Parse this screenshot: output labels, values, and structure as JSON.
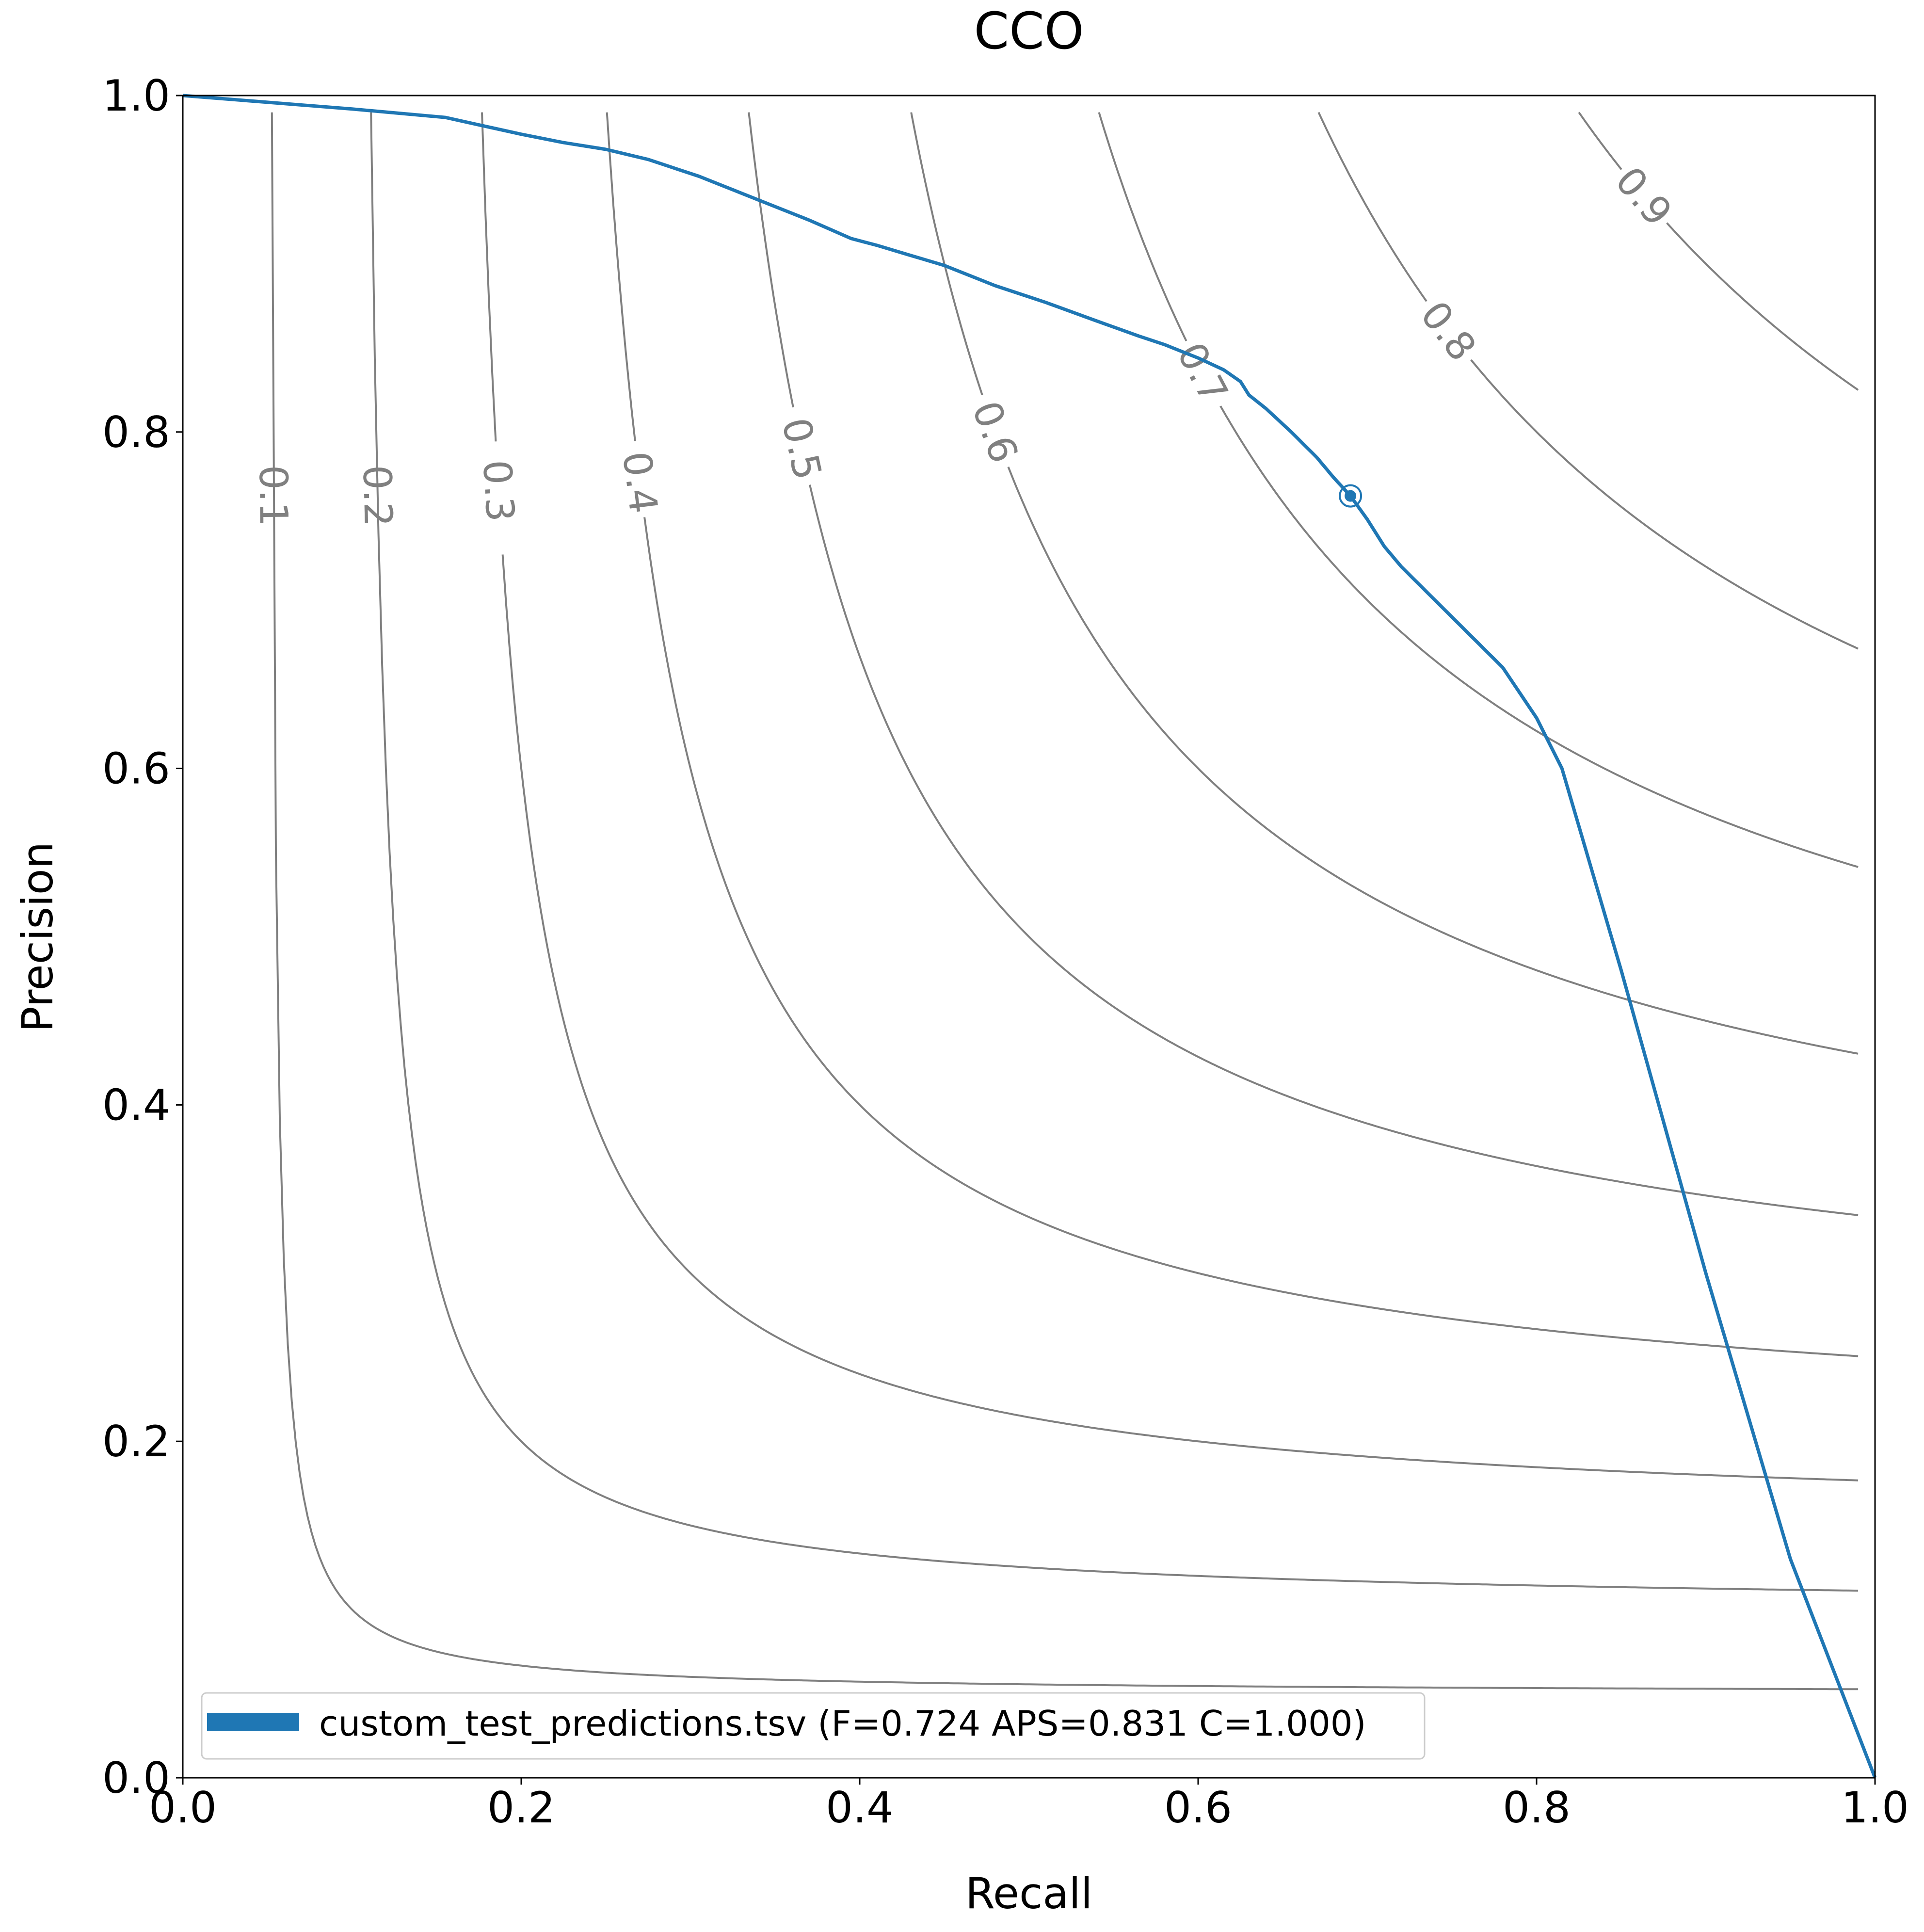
{
  "chart_data": {
    "type": "line",
    "title": "CCO",
    "xlabel": "Recall",
    "ylabel": "Precision",
    "xlim": [
      0.0,
      1.0
    ],
    "ylim": [
      0.0,
      1.0
    ],
    "xticks": [
      "0.0",
      "0.2",
      "0.4",
      "0.6",
      "0.8",
      "1.0"
    ],
    "yticks": [
      "0.0",
      "0.2",
      "0.4",
      "0.6",
      "0.8",
      "1.0"
    ],
    "grid": false,
    "legend_position": "lower-left",
    "iso_f_contours": {
      "color": "#808080",
      "levels": [
        0.1,
        0.2,
        0.3,
        0.4,
        0.5,
        0.6,
        0.7,
        0.8,
        0.9
      ],
      "labels": [
        "0.1",
        "0.2",
        "0.3",
        "0.4",
        "0.5",
        "0.6",
        "0.7",
        "0.8",
        "0.9"
      ]
    },
    "series": [
      {
        "name": "custom_test_predictions.tsv (F=0.724 APS=0.831 C=1.000)",
        "color": "#1f77b4",
        "x": [
          0.0,
          0.05,
          0.1,
          0.155,
          0.2,
          0.225,
          0.25,
          0.275,
          0.29,
          0.305,
          0.315,
          0.325,
          0.34,
          0.37,
          0.395,
          0.41,
          0.43,
          0.45,
          0.48,
          0.51,
          0.54,
          0.565,
          0.58,
          0.6,
          0.615,
          0.625,
          0.63,
          0.64,
          0.655,
          0.67,
          0.68,
          0.69,
          0.7,
          0.71,
          0.72,
          0.73,
          0.74,
          0.75,
          0.76,
          0.77,
          0.78,
          0.79,
          0.8,
          0.815,
          0.85,
          0.9,
          0.95,
          1.0
        ],
        "y": [
          1.0,
          0.996,
          0.992,
          0.987,
          0.977,
          0.972,
          0.968,
          0.962,
          0.957,
          0.952,
          0.948,
          0.944,
          0.938,
          0.926,
          0.915,
          0.911,
          0.905,
          0.899,
          0.887,
          0.877,
          0.866,
          0.857,
          0.852,
          0.844,
          0.837,
          0.83,
          0.822,
          0.814,
          0.8,
          0.785,
          0.773,
          0.762,
          0.748,
          0.732,
          0.72,
          0.71,
          0.7,
          0.69,
          0.68,
          0.67,
          0.66,
          0.645,
          0.63,
          0.6,
          0.48,
          0.3,
          0.13,
          0.0
        ]
      }
    ],
    "highlight_point": {
      "x": 0.69,
      "y": 0.762
    }
  }
}
